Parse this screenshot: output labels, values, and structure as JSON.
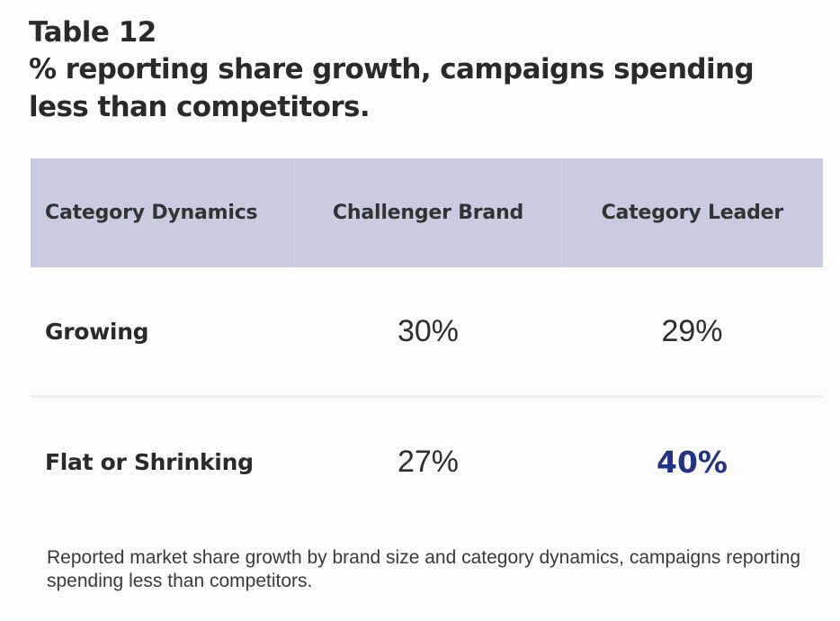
{
  "table_number": "Table 12",
  "title": "% reporting share growth, campaigns spending less than competitors.",
  "table": {
    "headers": [
      "Category Dynamics",
      "Challenger Brand",
      "Category Leader"
    ],
    "rows": [
      {
        "label": "Growing",
        "challenger": "30%",
        "leader": "29%"
      },
      {
        "label": "Flat or Shrinking",
        "challenger": "27%",
        "leader": "40%"
      }
    ]
  },
  "colors": {
    "header_bg": "#c9cbe0",
    "highlight": "#1f3486"
  },
  "caption": "Reported market share growth by brand size and category dynamics, campaigns reporting spending less than competitors."
}
